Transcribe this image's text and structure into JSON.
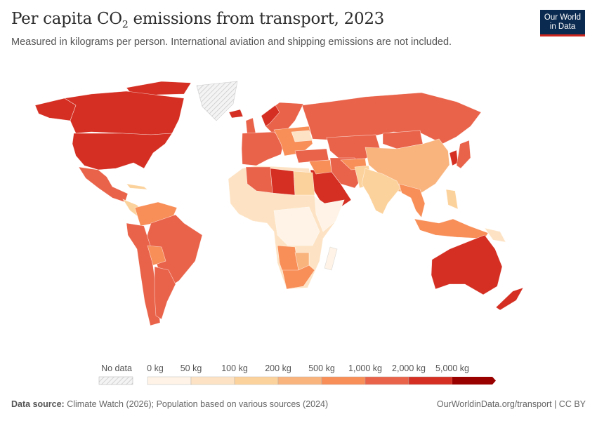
{
  "header": {
    "title_main": "Per capita CO",
    "title_sub": "2",
    "title_rest": " emissions from transport, 2023",
    "subtitle": "Measured in kilograms per person. International aviation and shipping emissions are not included.",
    "logo_line1": "Our World",
    "logo_line2": "in Data"
  },
  "map": {
    "type": "choropleth",
    "no_data_color": "#e0e0e0",
    "legend": {
      "no_data_label": "No data",
      "tick_labels": [
        "0 kg",
        "50 kg",
        "100 kg",
        "200 kg",
        "500 kg",
        "1,000 kg",
        "2,000 kg",
        "5,000 kg"
      ],
      "bins": [
        {
          "from": 0,
          "to": 50,
          "color": "#fef3e6"
        },
        {
          "from": 50,
          "to": 100,
          "color": "#fde3c4"
        },
        {
          "from": 100,
          "to": 200,
          "color": "#fcd29c"
        },
        {
          "from": 200,
          "to": 500,
          "color": "#f9b47e"
        },
        {
          "from": 500,
          "to": 1000,
          "color": "#f88e58"
        },
        {
          "from": 1000,
          "to": 2000,
          "color": "#e9634a"
        },
        {
          "from": 2000,
          "to": 5000,
          "color": "#d42f22"
        },
        {
          "from": 5000,
          "to": null,
          "color": "#990000"
        }
      ]
    }
  },
  "footer": {
    "source_label": "Data source:",
    "source_text": " Climate Watch (2026); Population based on various sources (2024)",
    "url_license": "OurWorldinData.org/transport | CC BY"
  }
}
